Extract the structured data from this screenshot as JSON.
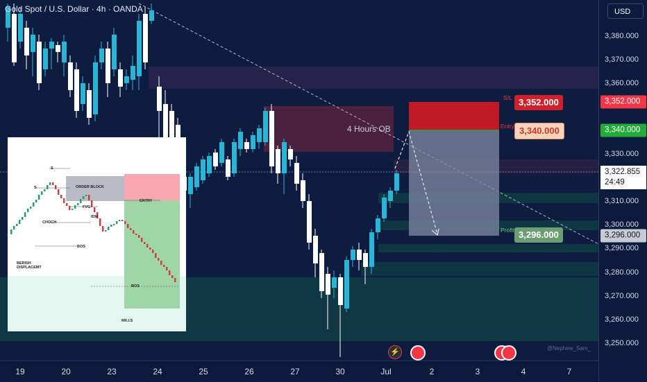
{
  "title": "Gold Spot / U.S. Dollar · 4h · OANDA",
  "currency": "USD",
  "price_ticks": [
    "3,380.000",
    "3,370.000",
    "3,360.000",
    "3,352.000",
    "3,340.000",
    "3,330.000",
    "3,310.000",
    "3,300.000",
    "3,296.000",
    "3,290.000",
    "3,280.000",
    "3,270.000",
    "3,260.000",
    "3,250.000"
  ],
  "time_ticks": [
    "19",
    "20",
    "23",
    "24",
    "25",
    "26",
    "27",
    "30",
    "Jul",
    "2",
    "3",
    "4",
    "7"
  ],
  "current_price": "3,322.855",
  "countdown": "24:49",
  "sl": {
    "label": "S/L",
    "price": "3,352.000"
  },
  "entry": {
    "label": "Entry",
    "price": "3,340.000"
  },
  "profit": {
    "label": "Profit",
    "price": "3,296.000"
  },
  "zone_label": "4 Hours OB",
  "watermark": "@Nephew_Sam_",
  "inset": {
    "order_block": "ORDER BLOCK",
    "entry": "ENTRY",
    "fvg": "FVG",
    "idm": "IDM",
    "choch": "CHOCH",
    "bos1": "BOS",
    "bos2": "BOS",
    "bearish": "BERISH",
    "displacement": "DISPLACEMT",
    "s1": "S",
    "s2": "S",
    "rris": "RR.I.S"
  },
  "colors": {
    "bg": "#0e1c40",
    "bull": "#29b6d6",
    "bear": "#ffffff",
    "sl": "#d0202b",
    "entry": "#f9d2bc",
    "profit": "#6b9f72",
    "current": "#ffffff",
    "sl_axis": "#f23645",
    "entry_axis": "#22ab3a"
  }
}
